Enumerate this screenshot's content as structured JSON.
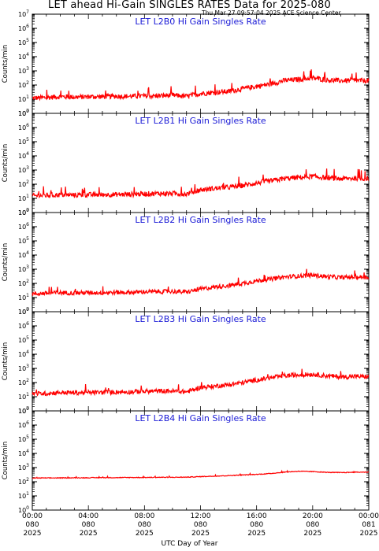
{
  "header": {
    "title": "LET ahead Hi-Gain SINGLES RATES Data for 2025-080",
    "timestamp": "Thu Mar 27 09:57:04 2025 ACE Science Center"
  },
  "colors": {
    "line": "#ff0000",
    "panel_title": "#1a1ad6"
  },
  "chart_data": {
    "type": "line",
    "scale": "log",
    "ylim_exp": [
      0,
      7
    ],
    "ylabel": "Counts/min",
    "xlabel": "UTC Day of Year",
    "x_ticks": [
      {
        "hour": 0,
        "time": "00:00",
        "day": "080",
        "year": "2025"
      },
      {
        "hour": 4,
        "time": "04:00",
        "day": "080",
        "year": "2025"
      },
      {
        "hour": 8,
        "time": "08:00",
        "day": "080",
        "year": "2025"
      },
      {
        "hour": 12,
        "time": "12:00",
        "day": "080",
        "year": "2025"
      },
      {
        "hour": 16,
        "time": "16:00",
        "day": "080",
        "year": "2025"
      },
      {
        "hour": 20,
        "time": "20:00",
        "day": "080",
        "year": "2025"
      },
      {
        "hour": 24,
        "time": "00:00",
        "day": "081",
        "year": "2025"
      }
    ],
    "panels": [
      {
        "title": "LET L2B0 Hi Gain Singles Rate",
        "hours": [
          0,
          1,
          2,
          3,
          4,
          5,
          6,
          7,
          8,
          9,
          10,
          11,
          12,
          13,
          14,
          15,
          16,
          17,
          18,
          19,
          20,
          21,
          22,
          23,
          24
        ],
        "values": [
          12,
          13,
          15,
          14,
          15,
          15,
          16,
          16,
          17,
          17,
          19,
          16,
          25,
          30,
          35,
          55,
          80,
          120,
          210,
          250,
          310,
          230,
          200,
          210,
          200
        ],
        "noise": 0.35
      },
      {
        "title": "LET L2B1 Hi Gain Singles Rate",
        "hours": [
          0,
          1,
          2,
          3,
          4,
          5,
          6,
          7,
          8,
          9,
          10,
          11,
          12,
          13,
          14,
          15,
          16,
          17,
          18,
          19,
          20,
          21,
          22,
          23,
          24
        ],
        "values": [
          15,
          16,
          18,
          17,
          18,
          18,
          19,
          19,
          21,
          22,
          22,
          20,
          40,
          50,
          60,
          80,
          120,
          170,
          250,
          300,
          350,
          280,
          240,
          260,
          250
        ],
        "noise": 0.35
      },
      {
        "title": "LET L2B2 Hi Gain Singles Rate",
        "hours": [
          0,
          1,
          2,
          3,
          4,
          5,
          6,
          7,
          8,
          9,
          10,
          11,
          12,
          13,
          14,
          15,
          16,
          17,
          18,
          19,
          20,
          21,
          22,
          23,
          24
        ],
        "values": [
          18,
          20,
          22,
          21,
          22,
          22,
          23,
          23,
          25,
          26,
          27,
          24,
          40,
          55,
          70,
          100,
          150,
          200,
          280,
          330,
          380,
          300,
          260,
          280,
          270
        ],
        "noise": 0.3
      },
      {
        "title": "LET L2B3 Hi Gain Singles Rate",
        "hours": [
          0,
          1,
          2,
          3,
          4,
          5,
          6,
          7,
          8,
          9,
          10,
          11,
          12,
          13,
          14,
          15,
          16,
          17,
          18,
          19,
          20,
          21,
          22,
          23,
          24
        ],
        "values": [
          16,
          17,
          20,
          19,
          20,
          20,
          21,
          22,
          24,
          25,
          25,
          22,
          45,
          55,
          70,
          100,
          150,
          210,
          300,
          350,
          380,
          300,
          250,
          270,
          260
        ],
        "noise": 0.32
      },
      {
        "title": "LET L2B4 Hi Gain Singles Rate",
        "hours": [
          0,
          1,
          2,
          3,
          4,
          5,
          6,
          7,
          8,
          9,
          10,
          11,
          12,
          13,
          14,
          15,
          16,
          17,
          18,
          19,
          20,
          21,
          22,
          23,
          24
        ],
        "values": [
          180,
          185,
          185,
          190,
          190,
          195,
          195,
          200,
          200,
          205,
          205,
          210,
          230,
          250,
          270,
          300,
          330,
          380,
          480,
          550,
          520,
          460,
          440,
          470,
          480
        ],
        "noise": 0.05
      }
    ]
  }
}
